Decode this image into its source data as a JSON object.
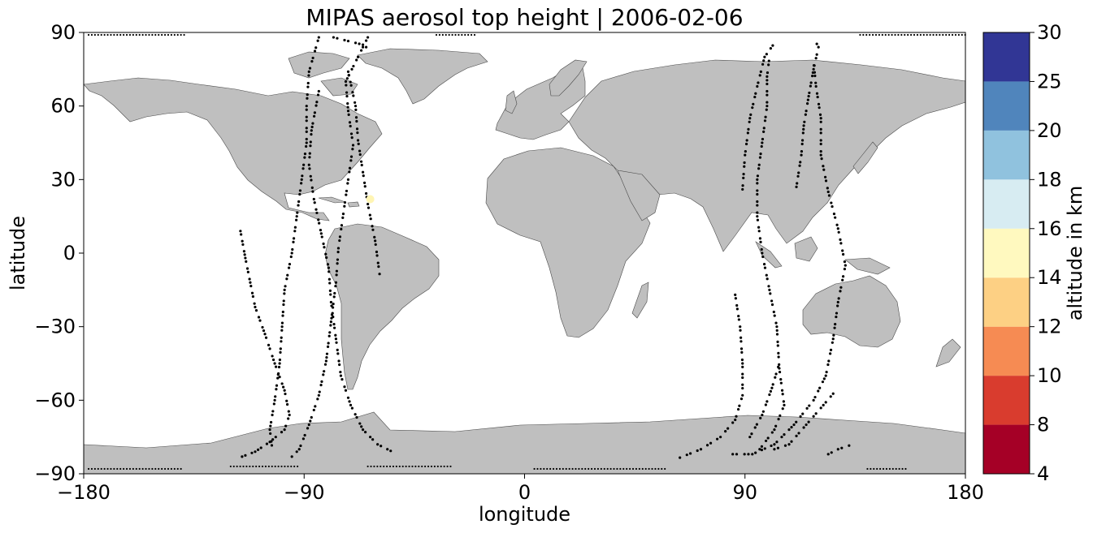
{
  "chart_data": {
    "type": "scatter",
    "title": "MIPAS aerosol top height | 2006-02-06",
    "xlabel": "longitude",
    "ylabel": "latitude",
    "xlim": [
      -180,
      180
    ],
    "ylim": [
      -90,
      90
    ],
    "x_ticks": [
      -180,
      -90,
      0,
      90,
      180
    ],
    "y_ticks": [
      90,
      60,
      30,
      0,
      -30,
      -60,
      -90
    ],
    "x_tick_labels": [
      "−180",
      "−90",
      "0",
      "90",
      "180"
    ],
    "y_tick_labels": [
      "90",
      "60",
      "30",
      "0",
      "−30",
      "−60",
      "−90"
    ],
    "basemap": "world coastlines, land filled grey",
    "land_color": "#bfbfbf",
    "track_color": "#000000",
    "tracks": [
      {
        "points": [
          [
            -116,
            9
          ],
          [
            -114,
            -2
          ],
          [
            -112,
            -12
          ],
          [
            -110,
            -22
          ],
          [
            -106,
            -33
          ],
          [
            -102,
            -45
          ],
          [
            -98,
            -56
          ],
          [
            -96,
            -66
          ],
          [
            -98,
            -72
          ],
          [
            -104,
            -77
          ],
          [
            -110,
            -81
          ],
          [
            -118,
            -84
          ]
        ]
      },
      {
        "points": [
          [
            -84,
            88
          ],
          [
            -88,
            74
          ],
          [
            -89,
            60
          ],
          [
            -89,
            45
          ],
          [
            -91,
            30
          ],
          [
            -93,
            15
          ],
          [
            -95,
            0
          ],
          [
            -98,
            -15
          ],
          [
            -99,
            -30
          ],
          [
            -100,
            -45
          ],
          [
            -102,
            -60
          ],
          [
            -104,
            -72
          ],
          [
            -103,
            -80
          ]
        ]
      },
      {
        "points": [
          [
            -84,
            66
          ],
          [
            -87,
            50
          ],
          [
            -88,
            36
          ],
          [
            -86,
            22
          ],
          [
            -83,
            8
          ],
          [
            -80,
            -6
          ],
          [
            -79,
            -20
          ],
          [
            -77,
            -35
          ],
          [
            -75,
            -50
          ],
          [
            -71,
            -62
          ],
          [
            -66,
            -72
          ],
          [
            -60,
            -78
          ],
          [
            -52,
            -82
          ]
        ]
      },
      {
        "points": [
          [
            -72,
            74
          ],
          [
            -69,
            60
          ],
          [
            -68,
            46
          ],
          [
            -66,
            33
          ],
          [
            -64,
            20
          ],
          [
            -61,
            5
          ],
          [
            -59,
            -10
          ]
        ]
      },
      {
        "points": [
          [
            -64,
            88
          ],
          [
            -68,
            80
          ],
          [
            -73,
            70
          ],
          [
            -72,
            58
          ],
          [
            -70,
            44
          ],
          [
            -72,
            30
          ],
          [
            -74,
            16
          ],
          [
            -76,
            2
          ],
          [
            -77,
            -12
          ],
          [
            -79,
            -28
          ],
          [
            -81,
            -44
          ],
          [
            -84,
            -58
          ],
          [
            -88,
            -70
          ],
          [
            -92,
            -80
          ],
          [
            -96,
            -84
          ]
        ]
      },
      {
        "points": [
          [
            -78,
            88
          ],
          [
            -66,
            85
          ],
          [
            -62,
            82
          ]
        ]
      },
      {
        "points": [
          [
            86,
            -17
          ],
          [
            88,
            -30
          ],
          [
            89,
            -45
          ],
          [
            89,
            -58
          ],
          [
            86,
            -68
          ],
          [
            80,
            -75
          ],
          [
            72,
            -80
          ],
          [
            62,
            -84
          ]
        ]
      },
      {
        "points": [
          [
            92,
            -75
          ],
          [
            97,
            -66
          ],
          [
            101,
            -55
          ],
          [
            104,
            -45
          ]
        ]
      },
      {
        "points": [
          [
            89,
            26
          ],
          [
            90,
            40
          ],
          [
            92,
            55
          ],
          [
            95,
            68
          ],
          [
            98,
            80
          ],
          [
            103,
            87
          ]
        ]
      },
      {
        "points": [
          [
            96,
            -80
          ],
          [
            102,
            -72
          ],
          [
            106,
            -62
          ],
          [
            104,
            -47
          ],
          [
            103,
            -30
          ],
          [
            100,
            -15
          ],
          [
            97,
            0
          ],
          [
            95,
            15
          ],
          [
            95,
            30
          ],
          [
            97,
            45
          ],
          [
            99,
            60
          ],
          [
            99,
            72
          ],
          [
            100,
            80
          ]
        ]
      },
      {
        "points": [
          [
            85,
            -82
          ],
          [
            93,
            -82
          ],
          [
            102,
            -78
          ],
          [
            110,
            -70
          ],
          [
            118,
            -60
          ],
          [
            123,
            -50
          ],
          [
            126,
            -35
          ],
          [
            128,
            -20
          ],
          [
            131,
            -5
          ],
          [
            128,
            10
          ],
          [
            124,
            25
          ],
          [
            121,
            40
          ],
          [
            121,
            55
          ],
          [
            119,
            68
          ],
          [
            118,
            78
          ]
        ]
      },
      {
        "points": [
          [
            102,
            -80
          ],
          [
            108,
            -78
          ],
          [
            115,
            -70
          ],
          [
            122,
            -62
          ],
          [
            128,
            -55
          ]
        ]
      },
      {
        "points": [
          [
            111,
            27
          ],
          [
            113,
            40
          ],
          [
            114,
            52
          ],
          [
            116,
            64
          ],
          [
            118,
            75
          ],
          [
            120,
            84
          ],
          [
            118,
            88
          ]
        ]
      },
      {
        "points": [
          [
            124,
            -82
          ],
          [
            128,
            -80
          ],
          [
            134,
            -78
          ]
        ]
      }
    ],
    "polar_dots": [
      {
        "lon_range": [
          -178,
          -140
        ],
        "lat": -88
      },
      {
        "lon_range": [
          -120,
          -92
        ],
        "lat": -87
      },
      {
        "lon_range": [
          -64,
          -30
        ],
        "lat": -87
      },
      {
        "lon_range": [
          4,
          58
        ],
        "lat": -88
      },
      {
        "lon_range": [
          140,
          156
        ],
        "lat": -88
      },
      {
        "lon_range": [
          -178,
          -138
        ],
        "lat": 89
      },
      {
        "lon_range": [
          -36,
          -20
        ],
        "lat": 89
      },
      {
        "lon_range": [
          137,
          180
        ],
        "lat": 89
      }
    ],
    "highlighted_points": [
      {
        "lon": -63,
        "lat": 22,
        "altitude_km": 15,
        "color": "#fff5b4"
      }
    ],
    "colorbar": {
      "label": "altitude in km",
      "boundaries": [
        4,
        8,
        10,
        12,
        14,
        16,
        18,
        20,
        25,
        30
      ],
      "colors": [
        "#a50026",
        "#d93c2e",
        "#f68b53",
        "#fdd084",
        "#fff9bf",
        "#d7ecf2",
        "#90c2de",
        "#5085bc",
        "#313695"
      ]
    }
  }
}
